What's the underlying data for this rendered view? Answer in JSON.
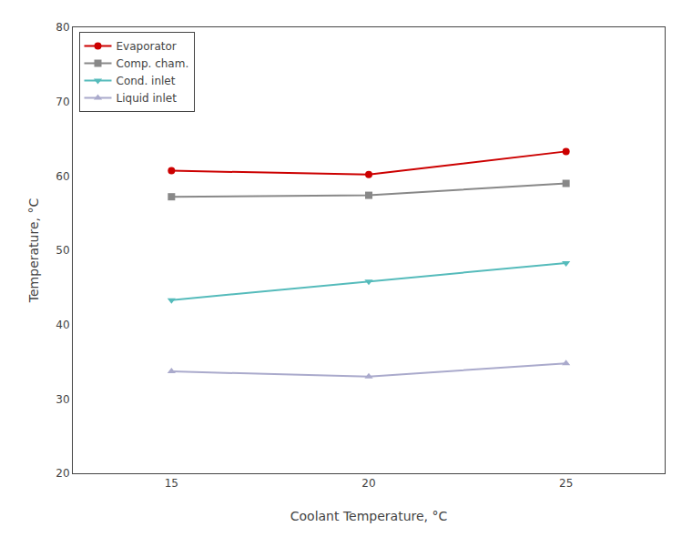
{
  "chart_data": {
    "type": "line",
    "x": [
      15,
      20,
      25
    ],
    "series": [
      {
        "name": "Evaporator",
        "color": "#cc0000",
        "marker": "circle",
        "line_style": "solid",
        "values": [
          60.7,
          60.2,
          63.3
        ]
      },
      {
        "name": "Comp. cham.",
        "color": "#888888",
        "marker": "square",
        "line_style": "solid",
        "values": [
          57.2,
          57.4,
          59.0
        ]
      },
      {
        "name": "Cond. inlet",
        "color": "#55bbbb",
        "marker": "triangle-down",
        "line_style": "solid",
        "values": [
          43.3,
          45.8,
          48.3
        ]
      },
      {
        "name": "Liquid inlet",
        "color": "#aaaacc",
        "marker": "triangle-up",
        "line_style": "solid",
        "values": [
          33.7,
          33.0,
          34.8
        ]
      }
    ],
    "xlabel": "Coolant Temperature, °C",
    "ylabel": "Temperature, °C",
    "xlim": [
      12.5,
      27.5
    ],
    "ylim": [
      20,
      80
    ],
    "xticks": [
      15,
      20,
      25
    ],
    "yticks": [
      20,
      30,
      40,
      50,
      60,
      70,
      80
    ],
    "legend": "upper left",
    "grid": false
  }
}
